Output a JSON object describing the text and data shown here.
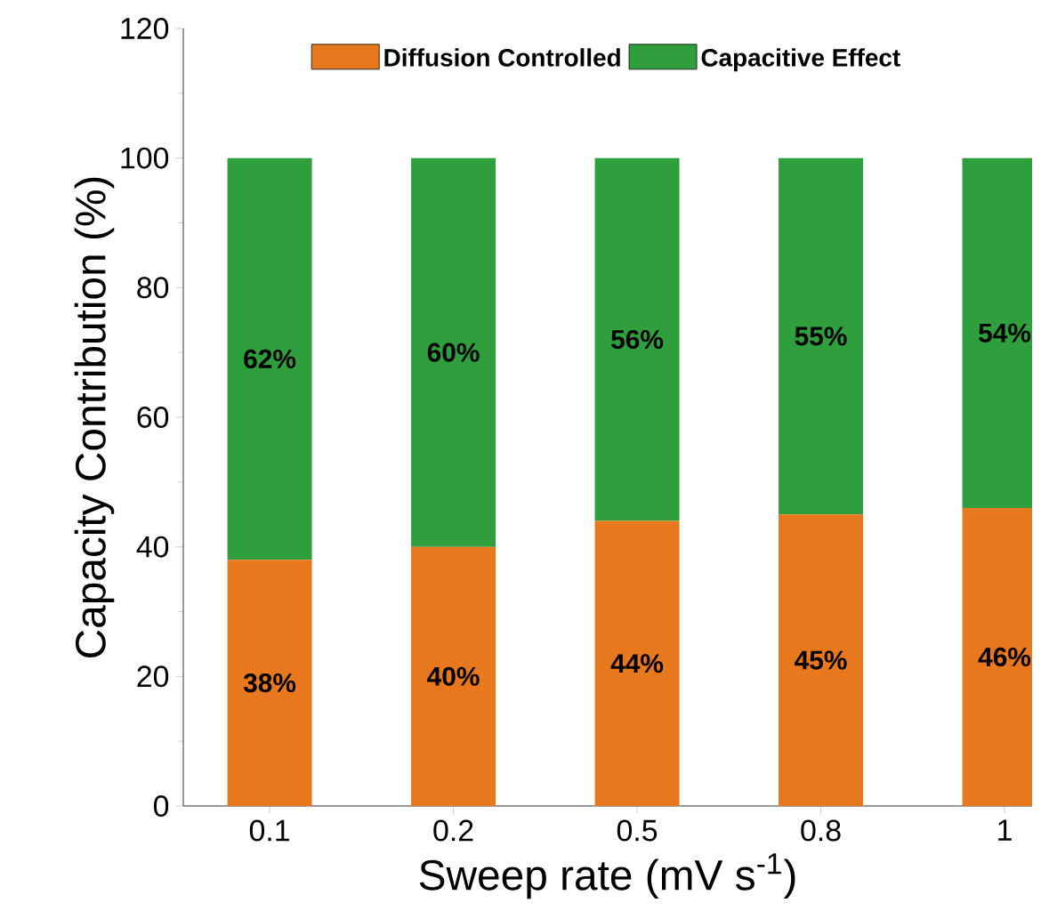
{
  "chart_data": {
    "type": "bar",
    "stacked": true,
    "xlabel": "Sweep rate (mV s$^{-1}$)",
    "ylabel": "Capacity Contribution (%)",
    "categories": [
      "0.1",
      "0.2",
      "0.5",
      "0.8",
      "1"
    ],
    "series": [
      {
        "name": "Diffusion Controlled",
        "color": "#e8781e",
        "values": [
          38,
          40,
          44,
          45,
          46
        ],
        "value_labels": [
          "38%",
          "40%",
          "44%",
          "45%",
          "46%"
        ]
      },
      {
        "name": "Capacitive Effect",
        "color": "#2f9e3c",
        "values": [
          62,
          60,
          56,
          55,
          54
        ],
        "value_labels": [
          "62%",
          "60%",
          "56%",
          "55%",
          "54%"
        ]
      }
    ],
    "ylim": [
      0,
      120
    ],
    "yticks": [
      0,
      20,
      40,
      60,
      80,
      100,
      120
    ],
    "legend": "top",
    "grid": false
  }
}
